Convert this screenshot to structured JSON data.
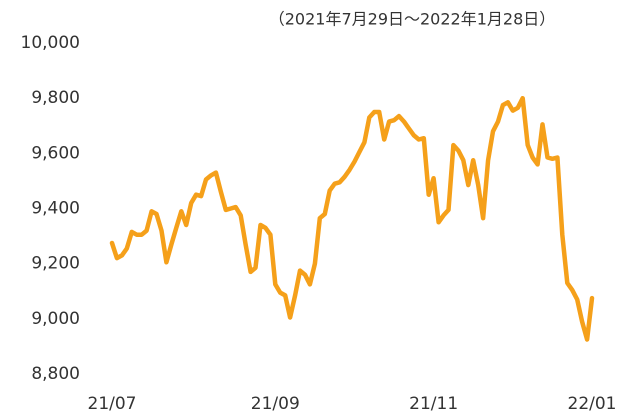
{
  "chart_data": {
    "type": "line",
    "subtitle": "（2021年7月29日～2022年1月28日）",
    "categories": [
      "21/07",
      null,
      null,
      null,
      null,
      null,
      null,
      null,
      null,
      null,
      null,
      null,
      null,
      null,
      null,
      null,
      null,
      null,
      null,
      null,
      null,
      null,
      null,
      null,
      null,
      null,
      null,
      null,
      null,
      null,
      null,
      null,
      null,
      "21/09",
      null,
      null,
      null,
      null,
      null,
      null,
      null,
      null,
      null,
      null,
      null,
      null,
      null,
      null,
      null,
      null,
      null,
      null,
      null,
      null,
      null,
      null,
      null,
      null,
      null,
      null,
      null,
      null,
      null,
      null,
      null,
      "21/11",
      null,
      null,
      null,
      null,
      null,
      null,
      null,
      null,
      null,
      null,
      null,
      null,
      null,
      null,
      null,
      null,
      null,
      null,
      null,
      null,
      null,
      null,
      null,
      null,
      null,
      null,
      null,
      null,
      null,
      null,
      null,
      "22/01"
    ],
    "series": [
      {
        "color": "#f5a01a",
        "values": [
          9275,
          9220,
          9230,
          9255,
          9315,
          9305,
          9305,
          9320,
          9390,
          9380,
          9320,
          9205,
          9270,
          9330,
          9390,
          9340,
          9420,
          9450,
          9445,
          9505,
          9520,
          9530,
          9460,
          9395,
          9400,
          9405,
          9375,
          9270,
          9170,
          9185,
          9340,
          9330,
          9305,
          9125,
          9095,
          9085,
          9005,
          9085,
          9175,
          9160,
          9125,
          9200,
          9365,
          9380,
          9465,
          9490,
          9495,
          9515,
          9540,
          9570,
          9605,
          9640,
          9730,
          9750,
          9750,
          9650,
          9715,
          9720,
          9735,
          9715,
          9690,
          9665,
          9650,
          9655,
          9450,
          9510,
          9350,
          9375,
          9395,
          9630,
          9610,
          9575,
          9485,
          9575,
          9485,
          9365,
          9575,
          9680,
          9715,
          9775,
          9785,
          9755,
          9765,
          9800,
          9630,
          9585,
          9560,
          9705,
          9585,
          9580,
          9585,
          9305,
          9130,
          9105,
          9070,
          8990,
          8925,
          9075
        ]
      }
    ],
    "ylim": [
      8800,
      10000
    ],
    "yticks": [
      {
        "value": 8800,
        "label": "8,800"
      },
      {
        "value": 9000,
        "label": "9,000"
      },
      {
        "value": 9200,
        "label": "9,200"
      },
      {
        "value": 9400,
        "label": "9,400"
      },
      {
        "value": 9600,
        "label": "9,600"
      },
      {
        "value": 9800,
        "label": "9,800"
      },
      {
        "value": 10000,
        "label": "10,000"
      }
    ],
    "grid": false
  }
}
